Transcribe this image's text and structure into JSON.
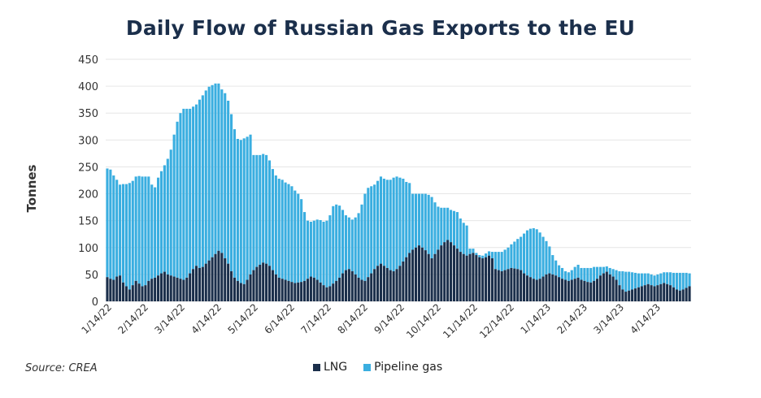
{
  "chart_data": {
    "type": "bar",
    "stacked": true,
    "title": "Daily Flow of Russian Gas Exports to the EU",
    "ylabel": "Tonnes",
    "xlabel": "",
    "ylim": [
      0,
      450
    ],
    "yticks": [
      0,
      50,
      100,
      150,
      200,
      250,
      300,
      350,
      400,
      450
    ],
    "xtick_labels": [
      "1/14/22",
      "2/14/22",
      "3/14/22",
      "4/14/22",
      "5/14/22",
      "6/14/22",
      "7/14/22",
      "8/14/22",
      "9/14/22",
      "10/14/22",
      "11/14/22",
      "12/14/22",
      "1/14/23",
      "2/14/23",
      "3/14/23",
      "4/14/23"
    ],
    "grid": true,
    "source": "Source: CREA",
    "legend_position": "bottom-center",
    "colors": {
      "lng": "#1b2f4b",
      "pipeline": "#3aaee0",
      "grid": "#e6e6e6",
      "axis_text": "#333333",
      "title": "#1b2f4b"
    },
    "series": [
      {
        "name": "LNG",
        "color": "#1b2f4b",
        "values": [
          45,
          42,
          40,
          46,
          48,
          35,
          28,
          22,
          30,
          38,
          33,
          28,
          30,
          38,
          42,
          44,
          48,
          52,
          55,
          50,
          48,
          46,
          44,
          42,
          40,
          44,
          52,
          60,
          66,
          62,
          64,
          70,
          76,
          82,
          88,
          94,
          90,
          80,
          70,
          56,
          44,
          38,
          34,
          32,
          40,
          50,
          58,
          64,
          68,
          72,
          70,
          66,
          58,
          50,
          44,
          42,
          40,
          38,
          36,
          34,
          35,
          36,
          38,
          42,
          46,
          44,
          40,
          35,
          30,
          26,
          28,
          33,
          38,
          44,
          52,
          58,
          60,
          56,
          50,
          44,
          40,
          38,
          45,
          52,
          60,
          66,
          70,
          66,
          62,
          58,
          56,
          60,
          66,
          74,
          82,
          90,
          96,
          100,
          104,
          100,
          95,
          88,
          80,
          88,
          96,
          104,
          110,
          114,
          110,
          104,
          98,
          92,
          88,
          85,
          88,
          90,
          86,
          82,
          80,
          82,
          85,
          80,
          60,
          58,
          56,
          58,
          60,
          62,
          61,
          60,
          58,
          52,
          48,
          45,
          42,
          40,
          42,
          46,
          50,
          52,
          50,
          48,
          45,
          42,
          40,
          38,
          40,
          42,
          44,
          40,
          38,
          36,
          35,
          38,
          42,
          48,
          52,
          55,
          50,
          46,
          40,
          30,
          22,
          18,
          20,
          22,
          24,
          26,
          28,
          30,
          32,
          30,
          28,
          30,
          32,
          34,
          32,
          30,
          26,
          22,
          20,
          22,
          25,
          28
        ]
      },
      {
        "name": "Pipeline gas",
        "color": "#3aaee0",
        "values": [
          202,
          203,
          194,
          180,
          169,
          183,
          190,
          198,
          194,
          194,
          200,
          204,
          202,
          194,
          175,
          168,
          182,
          190,
          198,
          215,
          234,
          264,
          290,
          308,
          318,
          314,
          306,
          302,
          300,
          313,
          319,
          322,
          323,
          320,
          317,
          311,
          304,
          307,
          303,
          292,
          276,
          264,
          266,
          271,
          266,
          260,
          214,
          208,
          204,
          202,
          202,
          196,
          188,
          184,
          184,
          184,
          181,
          180,
          178,
          172,
          165,
          154,
          128,
          108,
          102,
          106,
          112,
          116,
          118,
          124,
          132,
          144,
          142,
          134,
          118,
          102,
          96,
          96,
          106,
          120,
          140,
          162,
          166,
          162,
          157,
          158,
          162,
          162,
          164,
          168,
          174,
          172,
          164,
          154,
          140,
          130,
          104,
          100,
          96,
          100,
          105,
          110,
          114,
          96,
          80,
          70,
          64,
          60,
          60,
          64,
          68,
          62,
          58,
          56,
          10,
          8,
          4,
          4,
          5,
          7,
          8,
          12,
          32,
          34,
          36,
          38,
          40,
          44,
          50,
          56,
          62,
          74,
          84,
          90,
          94,
          94,
          86,
          74,
          62,
          50,
          36,
          28,
          22,
          20,
          16,
          16,
          18,
          22,
          24,
          22,
          24,
          26,
          27,
          26,
          22,
          16,
          12,
          10,
          12,
          14,
          18,
          26,
          34,
          37,
          35,
          32,
          29,
          26,
          24,
          22,
          20,
          20,
          20,
          20,
          20,
          20,
          22,
          24,
          27,
          31,
          33,
          31,
          28,
          24
        ]
      }
    ]
  },
  "legend": {
    "lng_label": "LNG",
    "pipeline_label": "Pipeline gas"
  }
}
